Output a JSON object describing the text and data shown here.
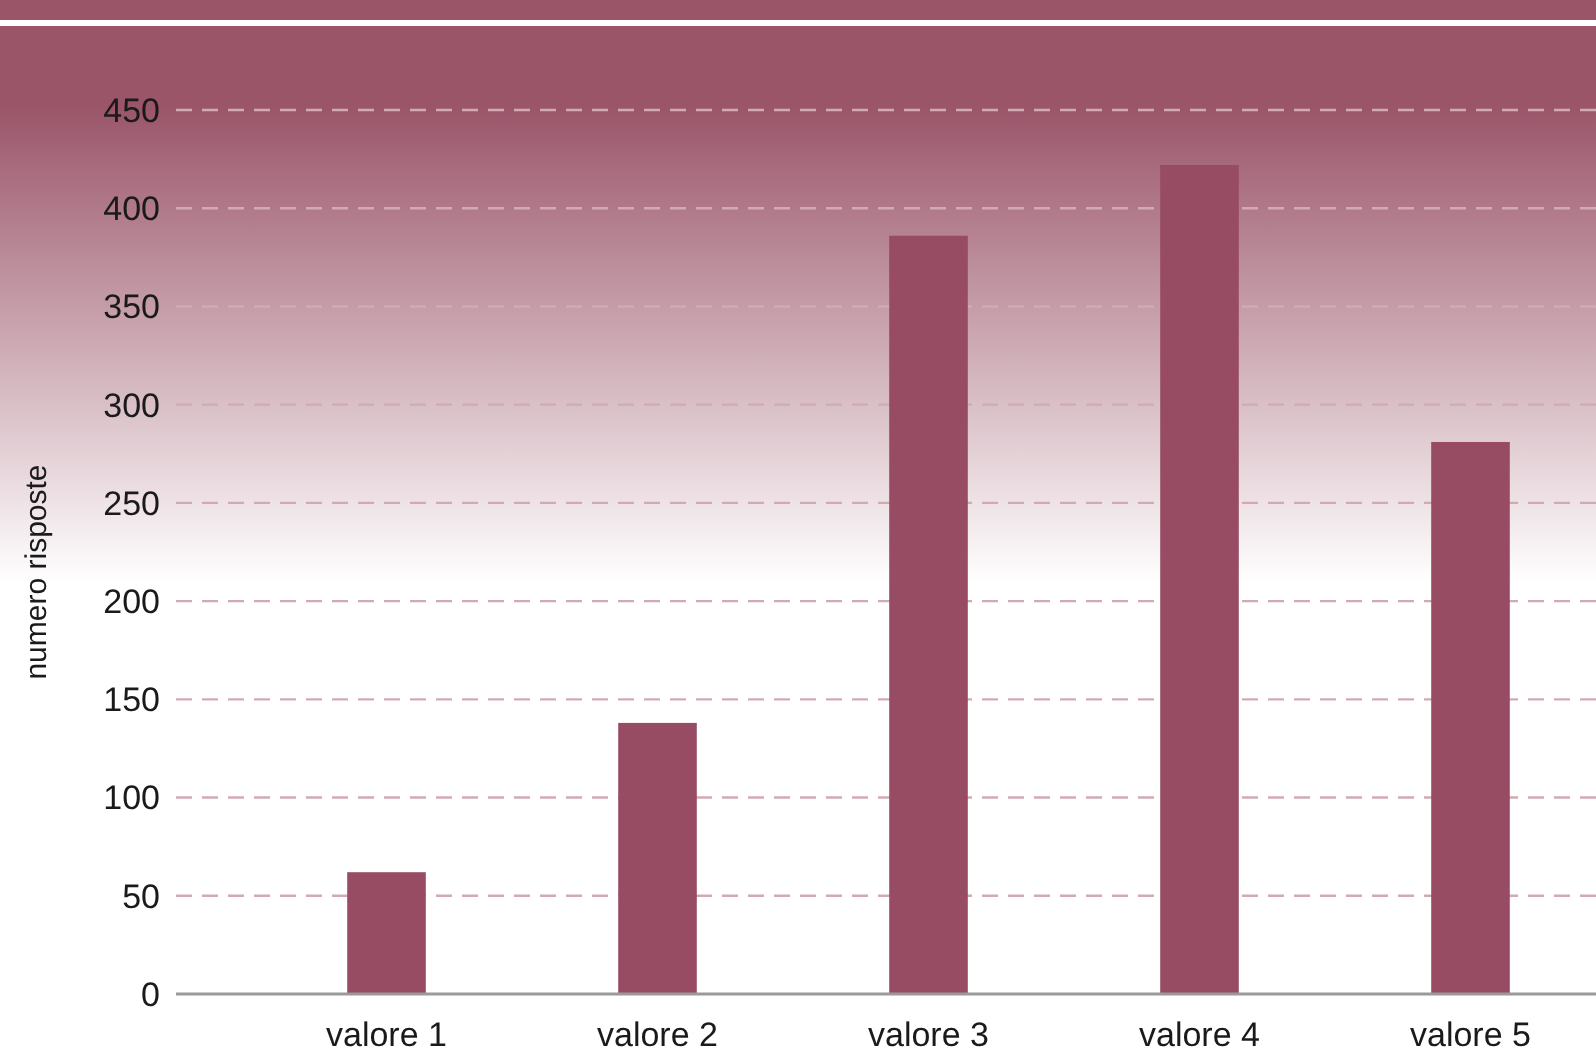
{
  "chart_data": {
    "type": "bar",
    "ylabel": "numero risposte",
    "categories": [
      "valore 1",
      "valore 2",
      "valore 3",
      "valore 4",
      "valore 5"
    ],
    "values": [
      62,
      138,
      386,
      422,
      281
    ],
    "color": "#974c63",
    "ylim": [
      0,
      450
    ],
    "yticks": [
      0,
      50,
      100,
      150,
      200,
      250,
      300,
      350,
      400,
      450
    ],
    "grid": "y"
  }
}
